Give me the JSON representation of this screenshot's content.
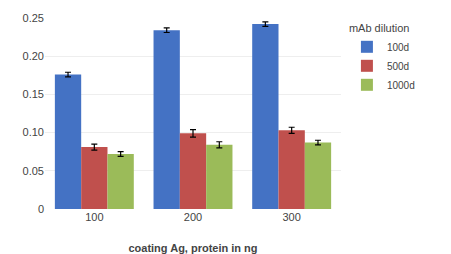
{
  "chart_data": {
    "type": "bar",
    "xlabel": "coating Ag, protein in ng",
    "legend_title": "mAb dilution",
    "categories": [
      "100",
      "200",
      "300"
    ],
    "series": [
      {
        "name": "100d",
        "color": "#4472C4",
        "values": [
          0.176,
          0.234,
          0.242
        ],
        "errors": [
          0.003,
          0.003,
          0.003
        ]
      },
      {
        "name": "500d",
        "color": "#C0504D",
        "values": [
          0.081,
          0.099,
          0.103
        ],
        "errors": [
          0.004,
          0.005,
          0.004
        ]
      },
      {
        "name": "1000d",
        "color": "#9BBB59",
        "values": [
          0.072,
          0.084,
          0.087
        ],
        "errors": [
          0.003,
          0.004,
          0.003
        ]
      }
    ],
    "ylim": [
      0,
      0.25
    ],
    "yticks": [
      0,
      0.05,
      {
        "value": 0.1,
        "label": "0.10"
      },
      0.15,
      {
        "value": 0.2,
        "label": "0.20"
      },
      0.25
    ],
    "grid": true,
    "legend": "right"
  }
}
